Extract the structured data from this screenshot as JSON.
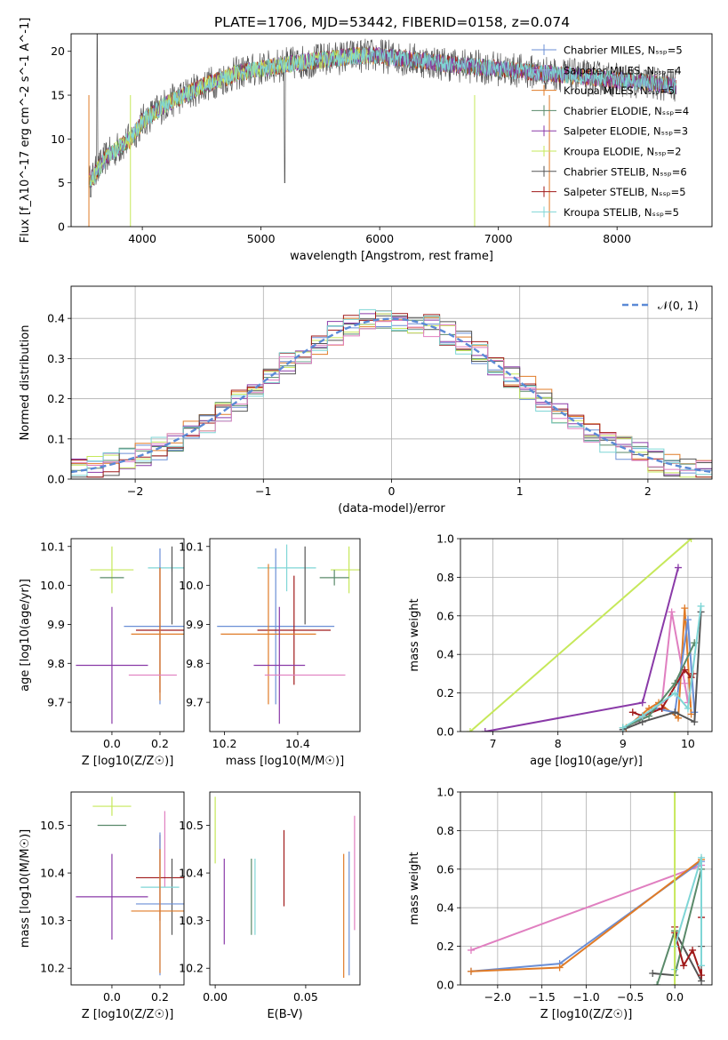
{
  "figure": {
    "title": "PLATE=1706, MJD=53442, FIBERID=0158, z=0.074"
  },
  "colors": {
    "chabrier_miles": "#6b8fd6",
    "salpeter_miles": "#8fb0e0",
    "kroupa_miles": "#e07b27",
    "chabrier_elodie": "#5a8a6a",
    "salpeter_elodie": "#8a3aa8",
    "kroupa_elodie": "#c6e85a",
    "chabrier_stelib": "#555555",
    "salpeter_stelib": "#a01a1a",
    "kroupa_stelib": "#7fd6d6",
    "pink": "#e07fc0",
    "grid": "#b0b0b0",
    "normal_curve": "#5b8ad6"
  },
  "chart_data": [
    {
      "id": "spectrum",
      "type": "line",
      "xlabel": "wavelength [Angstrom, rest frame]",
      "ylabel": "Flux [f_λ10^-17 erg cm^-2 s^-1 A^-1]",
      "xlim": [
        3400,
        8800
      ],
      "ylim": [
        0,
        22
      ],
      "xticks": [
        4000,
        5000,
        6000,
        7000,
        8000
      ],
      "yticks": [
        0,
        5,
        10,
        15,
        20
      ],
      "grid": false,
      "legend_position": "upper-right",
      "legend": [
        "Chabrier MILES, N_SSP=5",
        "Salpeter MILES, N_SSP=4",
        "Kroupa MILES, N_SSP=5",
        "Chabrier ELODIE, N_SSP=4",
        "Salpeter ELODIE, N_SSP=3",
        "Kroupa ELODIE, N_SSP=2",
        "Chabrier STELIB, N_SSP=6",
        "Salpeter STELIB, N_SSP=5",
        "Kroupa STELIB, N_SSP=5"
      ],
      "continuum_x": [
        3550,
        3700,
        3900,
        4000,
        4200,
        4500,
        4800,
        5000,
        5200,
        5500,
        5800,
        6000,
        6300,
        6600,
        7000,
        7400,
        7800,
        8200,
        8500
      ],
      "continuum_y": [
        5,
        8,
        10,
        12,
        14,
        16,
        17.5,
        18,
        18.5,
        19,
        19.5,
        19.5,
        19,
        18.5,
        18,
        17.5,
        17,
        16.5,
        16
      ]
    },
    {
      "id": "residuals",
      "type": "step",
      "xlabel": "(data-model)/error",
      "ylabel": "Normed distribution",
      "xlim": [
        -2.5,
        2.5
      ],
      "ylim": [
        0,
        0.48
      ],
      "xticks": [
        -2,
        -1,
        0,
        1,
        2
      ],
      "yticks": [
        0.0,
        0.1,
        0.2,
        0.3,
        0.4
      ],
      "grid": true,
      "legend_position": "upper-right",
      "legend_label": "N(0,1)"
    },
    {
      "id": "age_vs_Z",
      "type": "errorbar",
      "xlabel": "Z [log10(Z/Z☉)]",
      "ylabel": "age  [log10(age/yr)]",
      "xlim": [
        -0.17,
        0.3
      ],
      "ylim": [
        9.625,
        10.12
      ],
      "xticks": [
        0.0,
        0.2
      ],
      "yticks": [
        9.7,
        9.8,
        9.9,
        10.0,
        10.1
      ],
      "points": [
        {
          "c": "kroupa_elodie",
          "x": 0.0,
          "xe": 0.09,
          "y": 10.04,
          "ye": 0.06
        },
        {
          "c": "chabrier_elodie",
          "x": 0.0,
          "xe": 0.05,
          "y": 10.02,
          "ye": 0.0
        },
        {
          "c": "kroupa_stelib",
          "x": 0.25,
          "xe": 0.1,
          "y": 10.045,
          "ye": 0.01
        },
        {
          "c": "chabrier_stelib",
          "x": 0.25,
          "xe": 0.0,
          "y": 10.0,
          "ye": 0.1
        },
        {
          "c": "chabrier_miles",
          "x": 0.2,
          "xe": 0.15,
          "y": 9.895,
          "ye": 0.2
        },
        {
          "c": "salpeter_stelib",
          "x": 0.2,
          "xe": 0.1,
          "y": 9.885,
          "ye": 0.16
        },
        {
          "c": "kroupa_miles",
          "x": 0.2,
          "xe": 0.12,
          "y": 9.875,
          "ye": 0.17
        },
        {
          "c": "salpeter_elodie",
          "x": 0.0,
          "xe": 0.15,
          "y": 9.795,
          "ye": 0.15
        },
        {
          "c": "pink",
          "x": 0.17,
          "xe": 0.1,
          "y": 9.77,
          "ye": 0.0
        }
      ]
    },
    {
      "id": "age_vs_mass",
      "type": "errorbar",
      "xlabel": "mass [log10(M/M☉)]",
      "ylabel": "",
      "xlim": [
        10.16,
        10.57
      ],
      "ylim": [
        9.625,
        10.12
      ],
      "xticks": [
        10.2,
        10.4
      ],
      "yticks": [
        9.7,
        9.8,
        9.9,
        10.0,
        10.1
      ],
      "points": [
        {
          "c": "kroupa_elodie",
          "x": 10.54,
          "xe": 0.05,
          "y": 10.04,
          "ye": 0.06
        },
        {
          "c": "chabrier_elodie",
          "x": 10.5,
          "xe": 0.04,
          "y": 10.02,
          "ye": 0.02
        },
        {
          "c": "kroupa_stelib",
          "x": 10.37,
          "xe": 0.08,
          "y": 10.045,
          "ye": 0.06
        },
        {
          "c": "chabrier_stelib",
          "x": 10.42,
          "xe": 0.0,
          "y": 10.0,
          "ye": 0.1
        },
        {
          "c": "chabrier_miles",
          "x": 10.34,
          "xe": 0.16,
          "y": 9.895,
          "ye": 0.2
        },
        {
          "c": "salpeter_stelib",
          "x": 10.39,
          "xe": 0.1,
          "y": 9.885,
          "ye": 0.14
        },
        {
          "c": "kroupa_miles",
          "x": 10.32,
          "xe": 0.13,
          "y": 9.875,
          "ye": 0.18
        },
        {
          "c": "salpeter_elodie",
          "x": 10.35,
          "xe": 0.07,
          "y": 9.795,
          "ye": 0.15
        },
        {
          "c": "pink",
          "x": 10.42,
          "xe": 0.11,
          "y": 9.77,
          "ye": 0.0
        }
      ]
    },
    {
      "id": "weight_vs_age",
      "type": "line",
      "xlabel": "age  [log10(age/yr)]",
      "ylabel": "mass weight",
      "xlim": [
        6.5,
        10.37
      ],
      "ylim": [
        0,
        1.0
      ],
      "xticks": [
        7,
        8,
        9,
        10
      ],
      "yticks": [
        0.0,
        0.2,
        0.4,
        0.6,
        0.8,
        1.0
      ],
      "grid": true,
      "series": [
        {
          "c": "kroupa_elodie",
          "x": [
            6.65,
            10.05
          ],
          "y": [
            0.0,
            1.0
          ]
        },
        {
          "c": "salpeter_elodie",
          "x": [
            6.88,
            9.3,
            9.85
          ],
          "y": [
            0.0,
            0.15,
            0.85
          ]
        },
        {
          "c": "pink",
          "x": [
            9.2,
            9.6,
            9.75,
            9.95,
            10.0
          ],
          "y": [
            0.05,
            0.15,
            0.62,
            0.25,
            0.15
          ]
        },
        {
          "c": "kroupa_miles",
          "x": [
            9.05,
            9.4,
            9.55,
            9.85,
            9.95,
            10.05
          ],
          "y": [
            0.02,
            0.12,
            0.15,
            0.07,
            0.64,
            0.09
          ]
        },
        {
          "c": "chabrier_miles",
          "x": [
            9.0,
            9.3,
            9.5,
            9.8,
            10.0,
            10.1
          ],
          "y": [
            0.01,
            0.08,
            0.12,
            0.1,
            0.58,
            0.1
          ]
        },
        {
          "c": "salpeter_stelib",
          "x": [
            9.15,
            9.3,
            9.6,
            9.95,
            10.05,
            10.08
          ],
          "y": [
            0.1,
            0.08,
            0.12,
            0.32,
            0.28,
            0.3
          ]
        },
        {
          "c": "chabrier_elodie",
          "x": [
            9.0,
            9.4,
            9.8,
            10.1
          ],
          "y": [
            0.02,
            0.08,
            0.25,
            0.46
          ]
        },
        {
          "c": "chabrier_stelib",
          "x": [
            9.0,
            9.3,
            9.8,
            10.1,
            10.2
          ],
          "y": [
            0.01,
            0.05,
            0.1,
            0.05,
            0.62
          ]
        },
        {
          "c": "kroupa_stelib",
          "x": [
            9.0,
            9.3,
            9.8,
            10.0,
            10.2
          ],
          "y": [
            0.02,
            0.08,
            0.2,
            0.12,
            0.65
          ]
        }
      ]
    },
    {
      "id": "mass_vs_Z",
      "type": "errorbar",
      "xlabel": "Z [log10(Z/Z☉)]",
      "ylabel": "mass [log10(M/M☉)]",
      "xlim": [
        -0.17,
        0.3
      ],
      "ylim": [
        10.165,
        10.57
      ],
      "xticks": [
        0.0,
        0.2
      ],
      "yticks": [
        10.2,
        10.3,
        10.4,
        10.5
      ],
      "points": [
        {
          "c": "kroupa_elodie",
          "x": 0.0,
          "xe": 0.08,
          "y": 10.54,
          "ye": 0.02
        },
        {
          "c": "chabrier_elodie",
          "x": 0.0,
          "xe": 0.06,
          "y": 10.5,
          "ye": 0.0
        },
        {
          "c": "pink",
          "x": 0.22,
          "xe": 0.0,
          "y": 10.45,
          "ye": 0.08
        },
        {
          "c": "salpeter_stelib",
          "x": 0.2,
          "xe": 0.1,
          "y": 10.39,
          "ye": 0.09
        },
        {
          "c": "chabrier_stelib",
          "x": 0.25,
          "xe": 0.0,
          "y": 10.35,
          "ye": 0.08
        },
        {
          "c": "kroupa_stelib",
          "x": 0.2,
          "xe": 0.08,
          "y": 10.37,
          "ye": 0.0
        },
        {
          "c": "salpeter_elodie",
          "x": 0.0,
          "xe": 0.15,
          "y": 10.35,
          "ye": 0.09
        },
        {
          "c": "chabrier_miles",
          "x": 0.2,
          "xe": 0.1,
          "y": 10.335,
          "ye": 0.15
        },
        {
          "c": "kroupa_miles",
          "x": 0.2,
          "xe": 0.12,
          "y": 10.32,
          "ye": 0.13
        }
      ]
    },
    {
      "id": "mass_vs_ebv",
      "type": "errorbar",
      "xlabel": "E(B-V)",
      "ylabel": "",
      "xlim": [
        -0.003,
        0.08
      ],
      "ylim": [
        10.165,
        10.57
      ],
      "xticks": [
        0.0,
        0.05
      ],
      "yticks": [
        10.2,
        10.3,
        10.4,
        10.5
      ],
      "points": [
        {
          "c": "kroupa_elodie",
          "x": 0.0,
          "xe": 0.0,
          "y": 10.49,
          "ye": 0.07
        },
        {
          "c": "salpeter_elodie",
          "x": 0.005,
          "xe": 0.0,
          "y": 10.34,
          "ye": 0.09
        },
        {
          "c": "chabrier_elodie",
          "x": 0.02,
          "xe": 0.0,
          "y": 10.35,
          "ye": 0.08
        },
        {
          "c": "kroupa_stelib",
          "x": 0.022,
          "xe": 0.0,
          "y": 10.35,
          "ye": 0.08
        },
        {
          "c": "salpeter_stelib",
          "x": 0.038,
          "xe": 0.0,
          "y": 10.41,
          "ye": 0.08
        },
        {
          "c": "kroupa_miles",
          "x": 0.071,
          "xe": 0.0,
          "y": 10.31,
          "ye": 0.13
        },
        {
          "c": "chabrier_miles",
          "x": 0.074,
          "xe": 0.0,
          "y": 10.315,
          "ye": 0.13
        },
        {
          "c": "pink",
          "x": 0.077,
          "xe": 0.0,
          "y": 10.4,
          "ye": 0.12
        }
      ]
    },
    {
      "id": "weight_vs_Z",
      "type": "line",
      "xlabel": "Z [log10(Z/Z☉)]",
      "ylabel": "mass weight",
      "xlim": [
        -2.42,
        0.42
      ],
      "ylim": [
        0,
        1.0
      ],
      "xticks": [
        -2.0,
        -1.5,
        -1.0,
        -0.5,
        0.0
      ],
      "yticks": [
        0.0,
        0.2,
        0.4,
        0.6,
        0.8,
        1.0
      ],
      "grid": true,
      "series": [
        {
          "c": "pink",
          "x": [
            -2.3,
            0.3
          ],
          "y": [
            0.18,
            0.62
          ]
        },
        {
          "c": "chabrier_miles",
          "x": [
            -2.3,
            -1.3,
            0.3
          ],
          "y": [
            0.07,
            0.11,
            0.64
          ]
        },
        {
          "c": "kroupa_miles",
          "x": [
            -2.3,
            -1.3,
            0.3
          ],
          "y": [
            0.07,
            0.09,
            0.65
          ]
        },
        {
          "c": "chabrier_stelib",
          "x": [
            -0.25,
            0.0,
            0.0,
            0.3,
            0.3
          ],
          "y": [
            0.06,
            0.05,
            0.28,
            0.02,
            0.2
          ]
        },
        {
          "c": "chabrier_elodie",
          "x": [
            -0.2,
            0.0,
            0.0,
            0.3
          ],
          "y": [
            0.0,
            0.28,
            0.05,
            0.6
          ]
        },
        {
          "c": "salpeter_stelib",
          "x": [
            0.0,
            0.0,
            0.1,
            0.2,
            0.3,
            0.3
          ],
          "y": [
            0.3,
            0.27,
            0.1,
            0.18,
            0.05,
            0.35
          ]
        },
        {
          "c": "kroupa_stelib",
          "x": [
            0.0,
            0.0,
            0.3,
            0.3
          ],
          "y": [
            0.08,
            0.2,
            0.66,
            0.1
          ]
        },
        {
          "c": "kroupa_elodie",
          "x": [
            0.0,
            0.0
          ],
          "y": [
            1.0,
            0.0
          ]
        }
      ]
    }
  ]
}
